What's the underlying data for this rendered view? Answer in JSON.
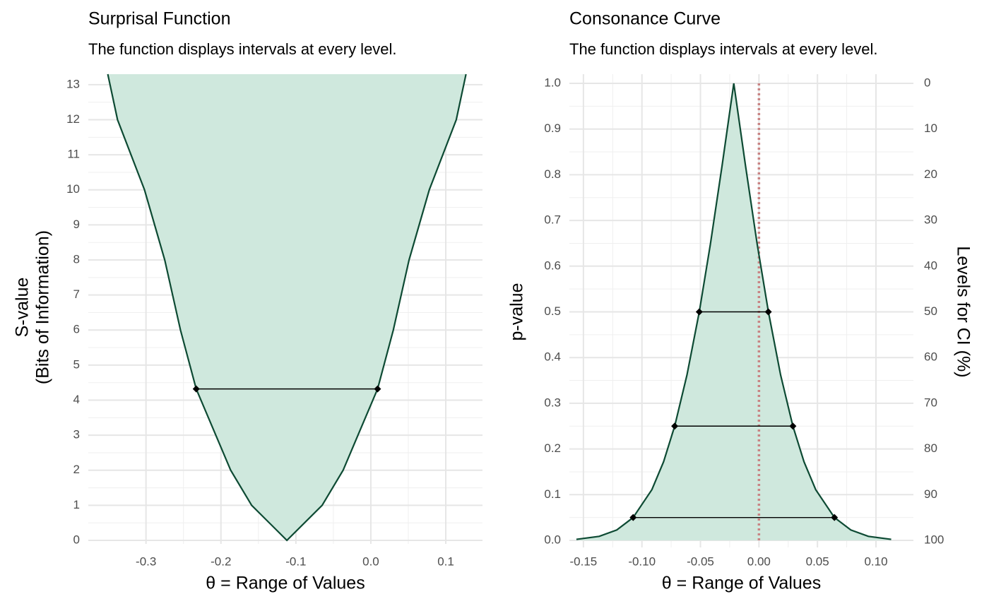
{
  "chart_data": [
    {
      "type": "area",
      "title": "Surprisal Function",
      "subtitle": "The function displays intervals at every level.",
      "xlabel": "θ =  Range of Values",
      "ylabel": [
        "S-value",
        "(Bits of Information)"
      ],
      "x": [
        -0.351,
        -0.338,
        -0.302,
        -0.275,
        -0.254,
        -0.233,
        -0.187,
        -0.159,
        -0.112,
        -0.065,
        -0.037,
        0.009,
        0.03,
        0.051,
        0.078,
        0.114,
        0.127
      ],
      "values": [
        13.3,
        12,
        10,
        8,
        6,
        4.32,
        2,
        1,
        0,
        1,
        2,
        4.32,
        6,
        8,
        10,
        12,
        13.3
      ],
      "color": "#0d4a33",
      "fill_color": "#cfe8dd",
      "fill": "above",
      "segments": [
        {
          "y": 4.32,
          "x": [
            -0.233,
            0.009
          ]
        }
      ],
      "segment_color": "#000000",
      "xlim": [
        -0.377,
        0.149
      ],
      "ylim": [
        0,
        13.3
      ],
      "xticks": [
        -0.3,
        -0.2,
        -0.1,
        {
          "value": 0,
          "label": "0.0"
        },
        0.1
      ],
      "yticks": [
        0,
        1,
        2,
        3,
        4,
        5,
        6,
        7,
        8,
        9,
        10,
        11,
        12,
        13
      ],
      "grid": true
    },
    {
      "type": "area",
      "title": "Consonance Curve",
      "subtitle": "The function displays intervals at every level.",
      "xlabel": "θ =  Range of Values",
      "ylabel": [
        "p-value"
      ],
      "y2label": "Levels for CI (%)",
      "x": [
        -0.156,
        -0.1365,
        -0.1215,
        -0.1075,
        -0.0915,
        -0.0815,
        -0.072,
        -0.0615,
        -0.051,
        -0.0415,
        -0.0315,
        -0.0215,
        -0.0115,
        -0.0015,
        0.0081,
        0.0185,
        0.029,
        0.0385,
        0.0485,
        0.0645,
        0.0785,
        0.0935,
        0.113
      ],
      "values": [
        0.0022,
        0.0088,
        0.0227,
        0.05,
        0.111,
        0.172,
        0.25,
        0.362,
        0.5,
        0.648,
        0.82,
        1,
        0.82,
        0.648,
        0.5,
        0.362,
        0.25,
        0.172,
        0.111,
        0.05,
        0.0227,
        0.0088,
        0.0022
      ],
      "color": "#0d4a33",
      "fill_color": "#cfe8dd",
      "fill": "below",
      "segments": [
        {
          "y": 0.5,
          "x": [
            -0.051,
            0.008
          ]
        },
        {
          "y": 0.25,
          "x": [
            -0.072,
            0.029
          ]
        },
        {
          "y": 0.05,
          "x": [
            -0.1075,
            0.0645
          ]
        }
      ],
      "segment_color": "#000000",
      "reference_line": {
        "x": 0,
        "color": "#c98383"
      },
      "xlim": [
        -0.162,
        0.132
      ],
      "ylim": [
        0,
        1
      ],
      "y2lim": [
        100,
        0
      ],
      "xticks": [
        -0.15,
        {
          "value": -0.1,
          "label": "-0.10"
        },
        -0.05,
        {
          "value": 0,
          "label": "0.00"
        },
        0.05,
        {
          "value": 0.1,
          "label": "0.10"
        }
      ],
      "yticks": [
        {
          "value": 0,
          "label": "0.0"
        },
        0.1,
        0.2,
        0.3,
        0.4,
        0.5,
        0.6,
        0.7,
        0.8,
        0.9,
        {
          "value": 1,
          "label": "1.0"
        }
      ],
      "y2ticks": [
        100,
        90,
        80,
        70,
        60,
        50,
        40,
        30,
        20,
        10,
        0
      ],
      "grid": true
    }
  ]
}
